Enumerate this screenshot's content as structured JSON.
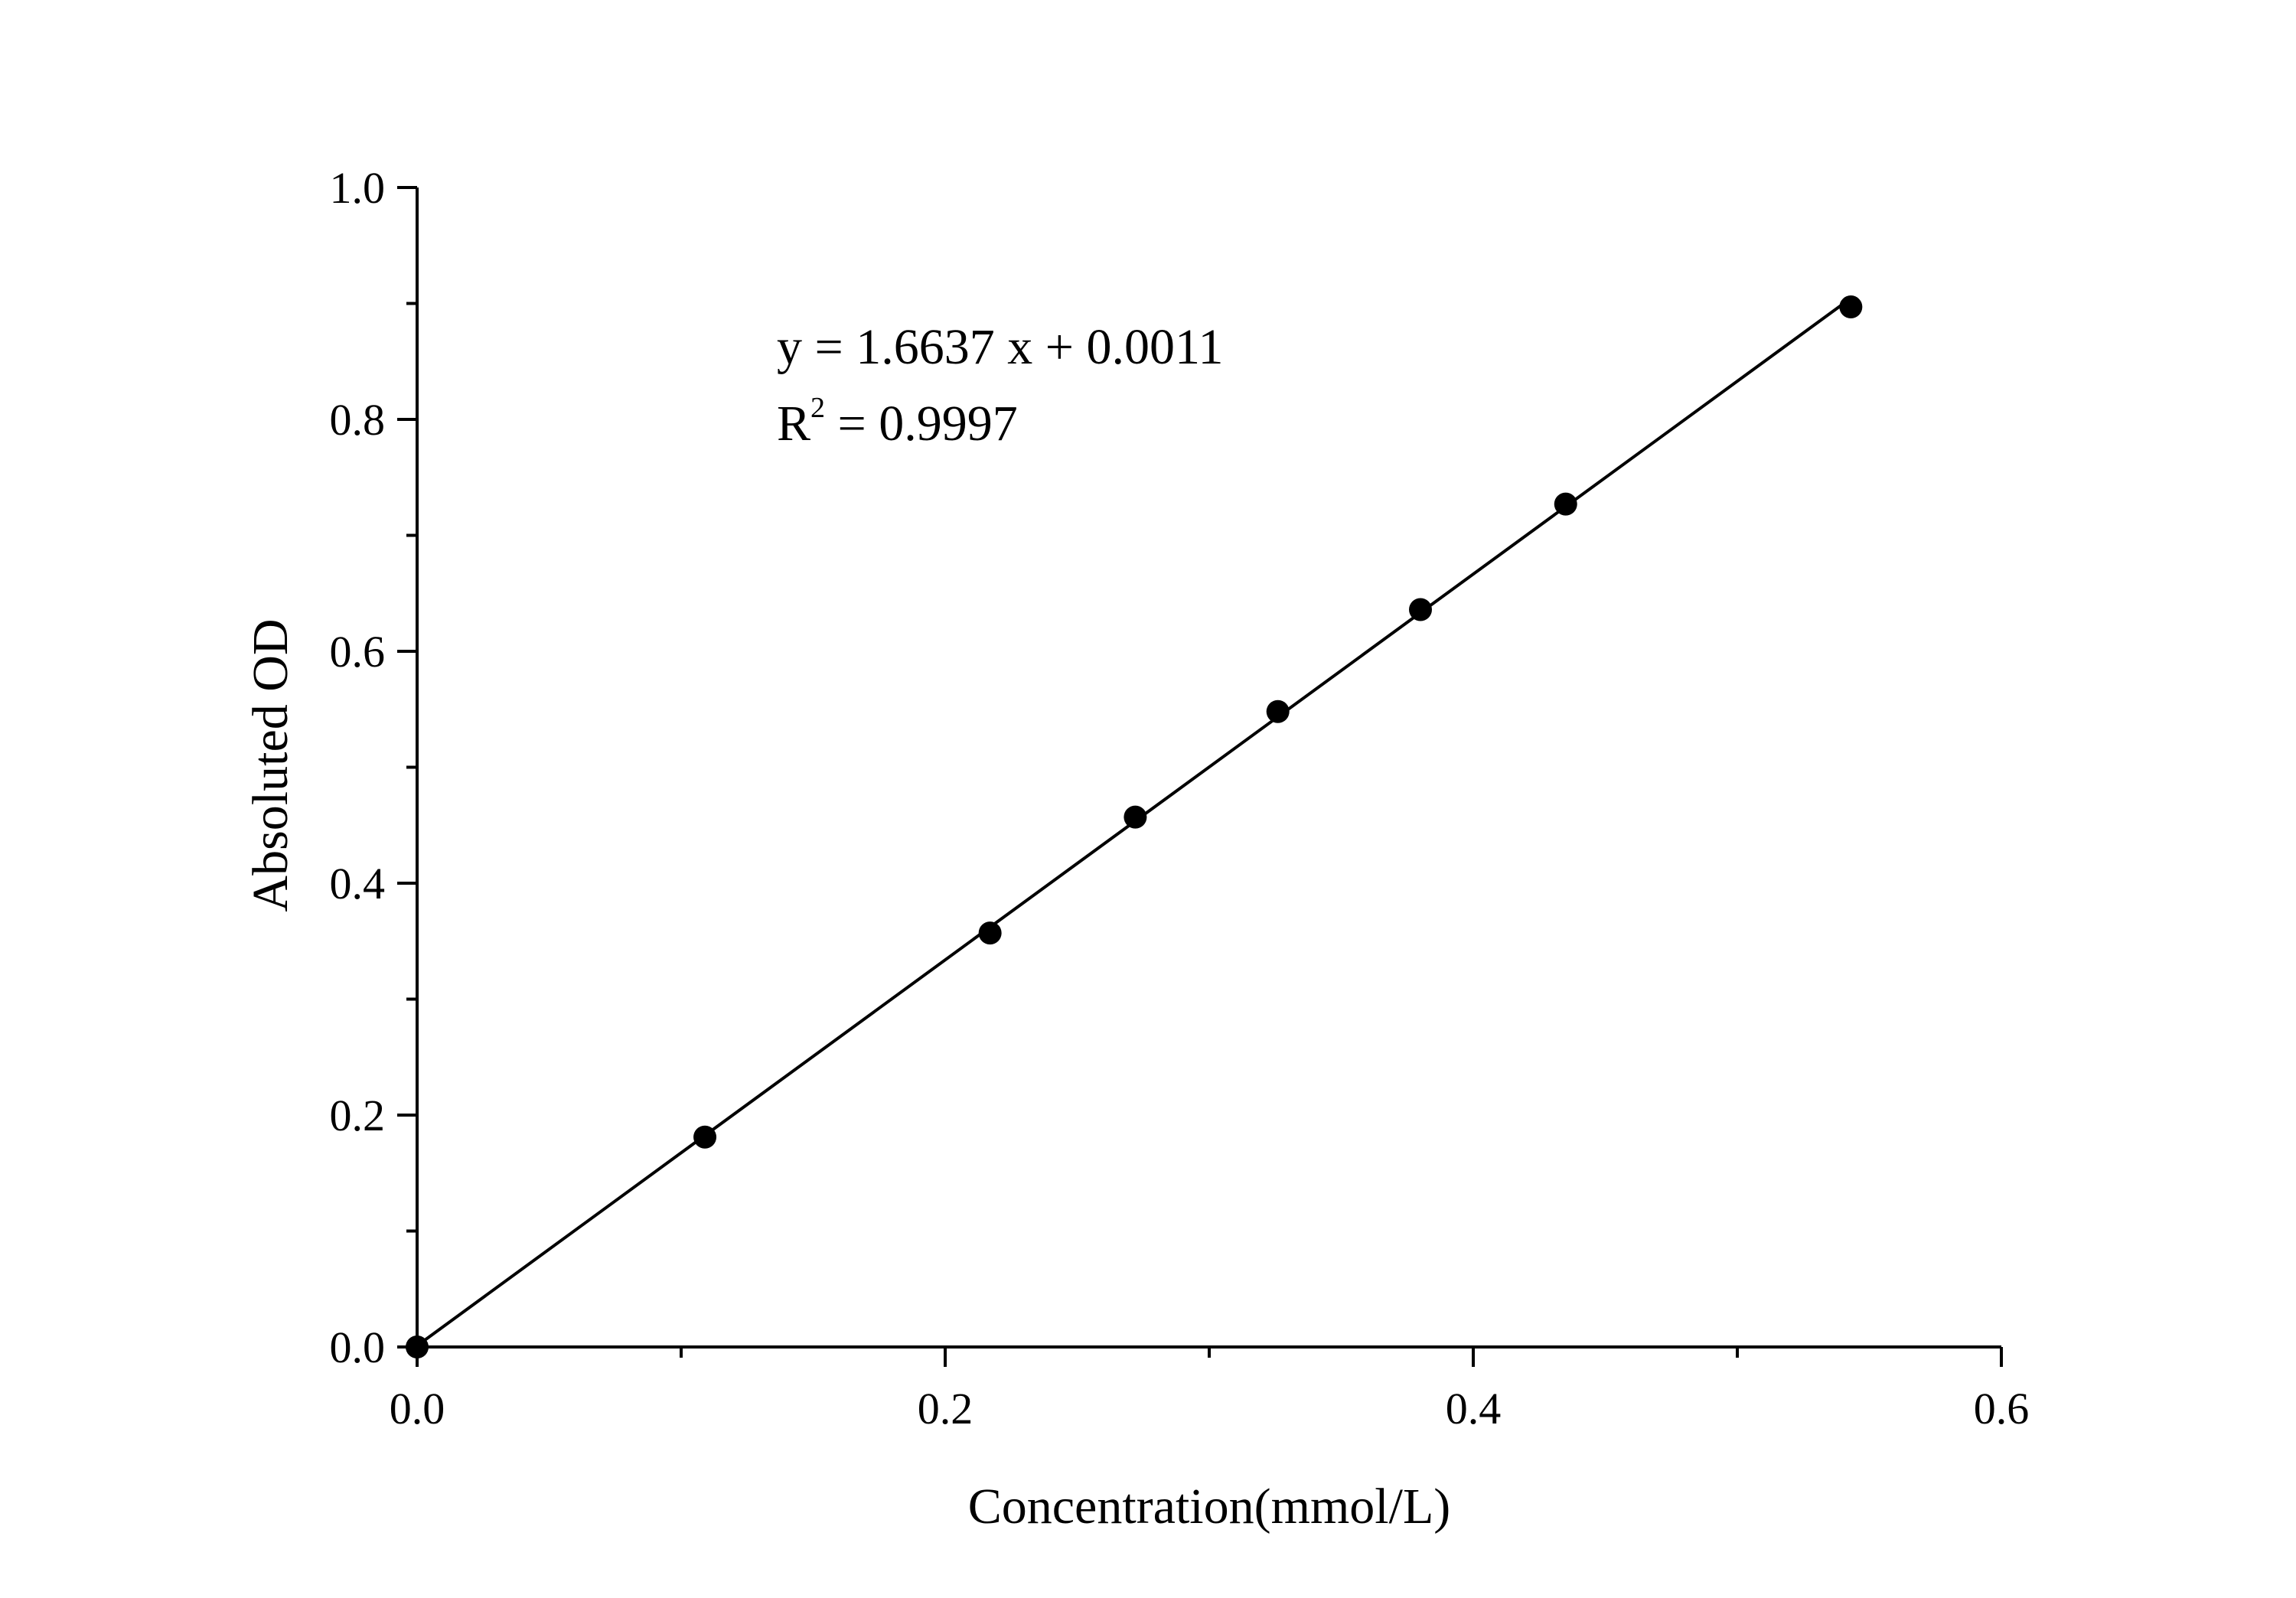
{
  "chart_data": {
    "type": "scatter",
    "title": "",
    "xlabel": "Concentration(mmol/L)",
    "ylabel": "Absoluted OD",
    "xlim": [
      0.0,
      0.6
    ],
    "ylim": [
      0.0,
      1.0
    ],
    "x_ticks": [
      0.0,
      0.2,
      0.4,
      0.6
    ],
    "x_tick_labels": [
      "0.0",
      "0.2",
      "0.4",
      "0.6"
    ],
    "y_ticks": [
      0.0,
      0.2,
      0.4,
      0.6,
      0.8,
      1.0
    ],
    "y_tick_labels": [
      "0.0",
      "0.2",
      "0.4",
      "0.6",
      "0.8",
      "1.0"
    ],
    "x_minor_ticks": [
      0.1,
      0.3,
      0.5
    ],
    "y_minor_ticks": [
      0.1,
      0.3,
      0.5,
      0.7,
      0.9
    ],
    "grid": false,
    "series": [
      {
        "points": [
          {
            "x": 0.0,
            "y": 0.0
          },
          {
            "x": 0.109,
            "y": 0.181
          },
          {
            "x": 0.217,
            "y": 0.357
          },
          {
            "x": 0.272,
            "y": 0.457
          },
          {
            "x": 0.326,
            "y": 0.548
          },
          {
            "x": 0.38,
            "y": 0.636
          },
          {
            "x": 0.435,
            "y": 0.727
          },
          {
            "x": 0.543,
            "y": 0.897
          }
        ],
        "color": "#000000"
      }
    ],
    "fit_line": {
      "slope": 1.6637,
      "intercept": 0.0011,
      "x_range": [
        0.0,
        0.543
      ]
    },
    "annotations": {
      "equation": "y = 1.6637 x + 0.0011",
      "r2_label": "R",
      "r2_superscript": "2",
      "r2_value": " = 0.9997"
    }
  }
}
